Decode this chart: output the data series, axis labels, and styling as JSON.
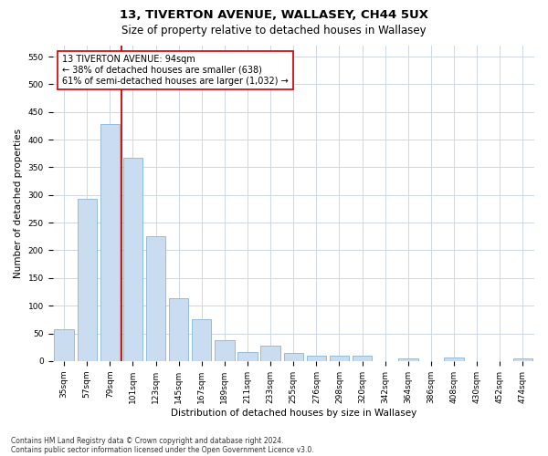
{
  "title1": "13, TIVERTON AVENUE, WALLASEY, CH44 5UX",
  "title2": "Size of property relative to detached houses in Wallasey",
  "xlabel": "Distribution of detached houses by size in Wallasey",
  "ylabel": "Number of detached properties",
  "categories": [
    "35sqm",
    "57sqm",
    "79sqm",
    "101sqm",
    "123sqm",
    "145sqm",
    "167sqm",
    "189sqm",
    "211sqm",
    "233sqm",
    "255sqm",
    "276sqm",
    "298sqm",
    "320sqm",
    "342sqm",
    "364sqm",
    "386sqm",
    "408sqm",
    "430sqm",
    "452sqm",
    "474sqm"
  ],
  "values": [
    57,
    293,
    428,
    367,
    225,
    113,
    76,
    38,
    17,
    27,
    15,
    10,
    9,
    9,
    0,
    5,
    0,
    6,
    0,
    0,
    4
  ],
  "bar_color": "#c9dcf0",
  "bar_edge_color": "#89b4d8",
  "vline_color": "#cc0000",
  "annotation_text": "13 TIVERTON AVENUE: 94sqm\n← 38% of detached houses are smaller (638)\n61% of semi-detached houses are larger (1,032) →",
  "annotation_box_color": "#ffffff",
  "annotation_box_edge": "#cc0000",
  "ylim": [
    0,
    570
  ],
  "yticks": [
    0,
    50,
    100,
    150,
    200,
    250,
    300,
    350,
    400,
    450,
    500,
    550
  ],
  "footer1": "Contains HM Land Registry data © Crown copyright and database right 2024.",
  "footer2": "Contains public sector information licensed under the Open Government Licence v3.0.",
  "bg_color": "#ffffff",
  "grid_color": "#ccd6e8",
  "title_fontsize": 9.5,
  "subtitle_fontsize": 8.5,
  "tick_fontsize": 6.5,
  "label_fontsize": 7.5,
  "annotation_fontsize": 7,
  "footer_fontsize": 5.5
}
